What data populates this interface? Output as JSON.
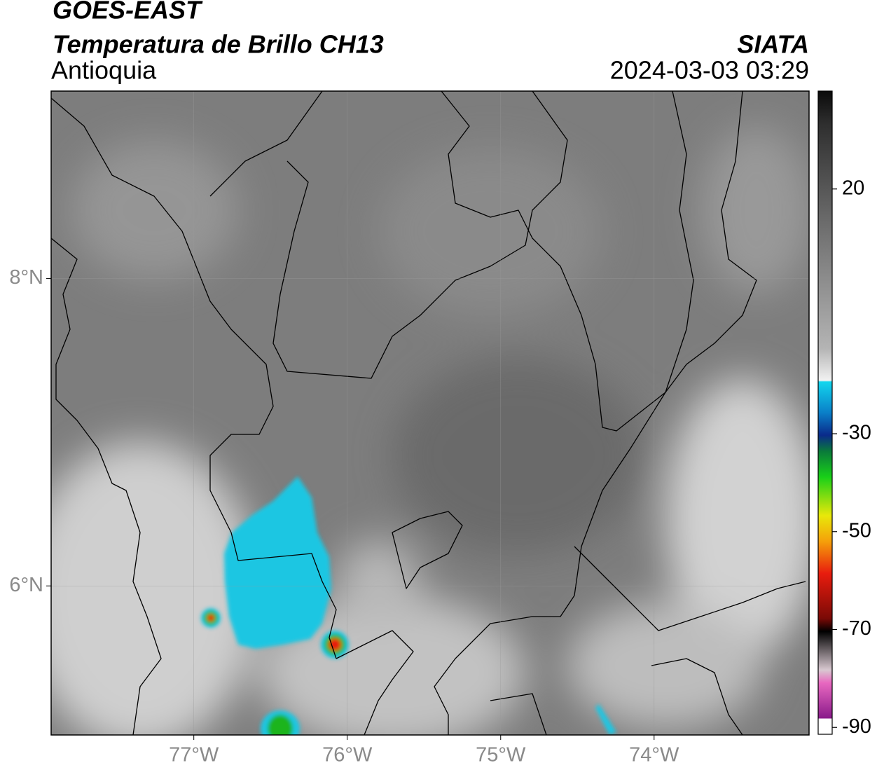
{
  "header": {
    "title": "GOES-EAST",
    "subtitle": "Temperatura de Brillo CH13",
    "region": "Antioquia",
    "source": "SIATA",
    "timestamp": "2024-03-03 03:29"
  },
  "map": {
    "xlim": [
      -77.93,
      -72.99
    ],
    "ylim": [
      5.03,
      9.22
    ],
    "xticks": [
      {
        "value": -77,
        "label": "77°W"
      },
      {
        "value": -76,
        "label": "76°W"
      },
      {
        "value": -75,
        "label": "75°W"
      },
      {
        "value": -74,
        "label": "74°W"
      }
    ],
    "yticks": [
      {
        "value": 8,
        "label": "8°N"
      },
      {
        "value": 6,
        "label": "6°N"
      }
    ],
    "grid": true
  },
  "colorbar": {
    "lim": [
      -91.4,
      40
    ],
    "ticks": [
      20,
      -30,
      -50,
      -70,
      -90
    ]
  }
}
